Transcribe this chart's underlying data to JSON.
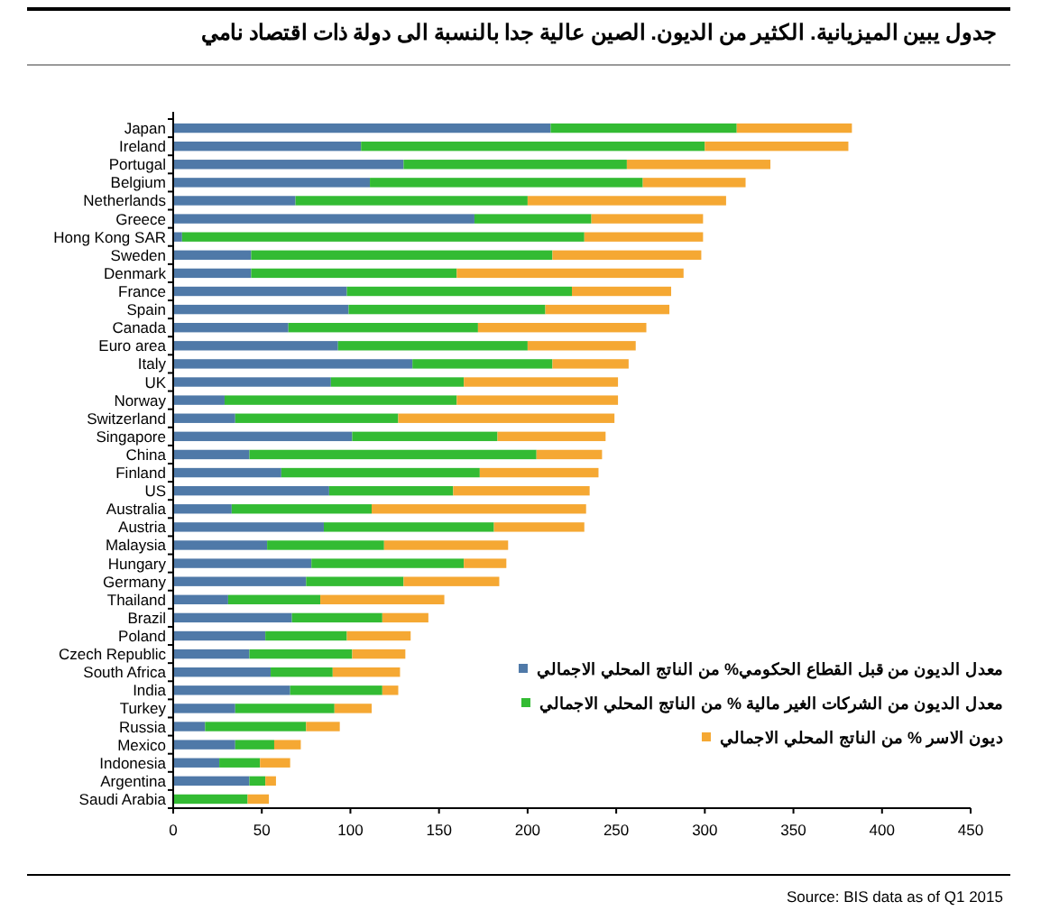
{
  "chart_data": {
    "type": "bar",
    "orientation": "horizontal",
    "stacked": true,
    "title": "جدول يبين الميزيانية. الكثير من الديون. الصين عالية جدا بالنسبة الى دولة ذات اقتصاد نامي",
    "categories": [
      "Japan",
      "Ireland",
      "Portugal",
      "Belgium",
      "Netherlands",
      "Greece",
      "Hong Kong SAR",
      "Sweden",
      "Denmark",
      "France",
      "Spain",
      "Canada",
      "Euro area",
      "Italy",
      "UK",
      "Norway",
      "Switzerland",
      "Singapore",
      "China",
      "Finland",
      "US",
      "Australia",
      "Austria",
      "Malaysia",
      "Hungary",
      "Germany",
      "Thailand",
      "Brazil",
      "Poland",
      "Czech Republic",
      "South Africa",
      "India",
      "Turkey",
      "Russia",
      "Mexico",
      "Indonesia",
      "Argentina",
      "Saudi Arabia"
    ],
    "series": [
      {
        "name": "معدل الديون من قبل القطاع الحكومي% من الناتج المحلي الاجمالي",
        "color": "#4f79a8",
        "values": [
          213,
          106,
          130,
          111,
          69,
          170,
          5,
          44,
          44,
          98,
          99,
          65,
          93,
          135,
          89,
          29,
          35,
          101,
          43,
          61,
          88,
          33,
          85,
          53,
          78,
          75,
          31,
          67,
          52,
          43,
          55,
          66,
          35,
          18,
          35,
          26,
          43,
          0
        ]
      },
      {
        "name": "معدل الديون من الشركات الغير مالية % من الناتج المحلي الاجمالي",
        "color": "#33bb33",
        "values": [
          105,
          194,
          126,
          154,
          131,
          66,
          227,
          170,
          116,
          127,
          111,
          107,
          107,
          79,
          75,
          131,
          92,
          82,
          162,
          112,
          70,
          79,
          96,
          66,
          86,
          55,
          52,
          51,
          46,
          58,
          35,
          52,
          56,
          57,
          22,
          23,
          9,
          42
        ]
      },
      {
        "name": "ديون الاسر % من الناتج المحلي الاجمالي",
        "color": "#f5a833",
        "values": [
          65,
          81,
          81,
          58,
          112,
          63,
          67,
          84,
          128,
          56,
          70,
          95,
          61,
          43,
          87,
          91,
          122,
          61,
          37,
          67,
          77,
          121,
          51,
          70,
          24,
          54,
          70,
          26,
          36,
          30,
          38,
          9,
          21,
          19,
          15,
          17,
          6,
          12
        ]
      }
    ],
    "xlim": [
      0,
      450
    ],
    "xticks": [
      0,
      50,
      100,
      150,
      200,
      250,
      300,
      350,
      400,
      450
    ],
    "grid": false,
    "legend": "bottom right",
    "annotations": [
      "Source: BIS data as of Q1 2015"
    ]
  }
}
